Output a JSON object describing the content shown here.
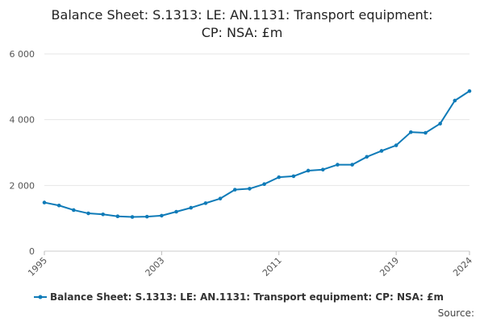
{
  "chart": {
    "title_line1": "Balance Sheet: S.1313: LE: AN.1131: Transport equipment:",
    "title_line2": "CP: NSA: £m",
    "source_label": "Source:"
  },
  "colors": {
    "series": "#0f7bb8",
    "grid": "#e6e6e6",
    "axis_text": "#555555"
  },
  "chart_data": {
    "type": "line",
    "title": "Balance Sheet: S.1313: LE: AN.1131: Transport equipment: CP: NSA: £m",
    "xlabel": "",
    "ylabel": "",
    "xlim": [
      1995,
      2024
    ],
    "ylim": [
      0,
      6000
    ],
    "y_ticks": [
      {
        "value": 0,
        "label": "0"
      },
      {
        "value": 2000,
        "label": "2 000"
      },
      {
        "value": 4000,
        "label": "4 000"
      },
      {
        "value": 6000,
        "label": "6 000"
      }
    ],
    "x_ticks": [
      {
        "value": 1995,
        "label": "1995"
      },
      {
        "value": 2003,
        "label": "2003"
      },
      {
        "value": 2011,
        "label": "2011"
      },
      {
        "value": 2019,
        "label": "2019"
      },
      {
        "value": 2024,
        "label": "2024"
      }
    ],
    "grid": "horizontal",
    "legend_position": "bottom",
    "series": [
      {
        "name": "Balance Sheet: S.1313: LE: AN.1131: Transport equipment: CP: NSA: £m",
        "x": [
          1995,
          1996,
          1997,
          1998,
          1999,
          2000,
          2001,
          2002,
          2003,
          2004,
          2005,
          2006,
          2007,
          2008,
          2009,
          2010,
          2011,
          2012,
          2013,
          2014,
          2015,
          2016,
          2017,
          2018,
          2019,
          2020,
          2021,
          2022,
          2023,
          2024
        ],
        "values": [
          1480,
          1390,
          1250,
          1150,
          1120,
          1060,
          1040,
          1050,
          1080,
          1200,
          1320,
          1460,
          1600,
          1870,
          1900,
          2040,
          2250,
          2280,
          2450,
          2480,
          2630,
          2630,
          2870,
          3050,
          3220,
          3620,
          3600,
          3880,
          4580,
          4870
        ]
      }
    ]
  }
}
